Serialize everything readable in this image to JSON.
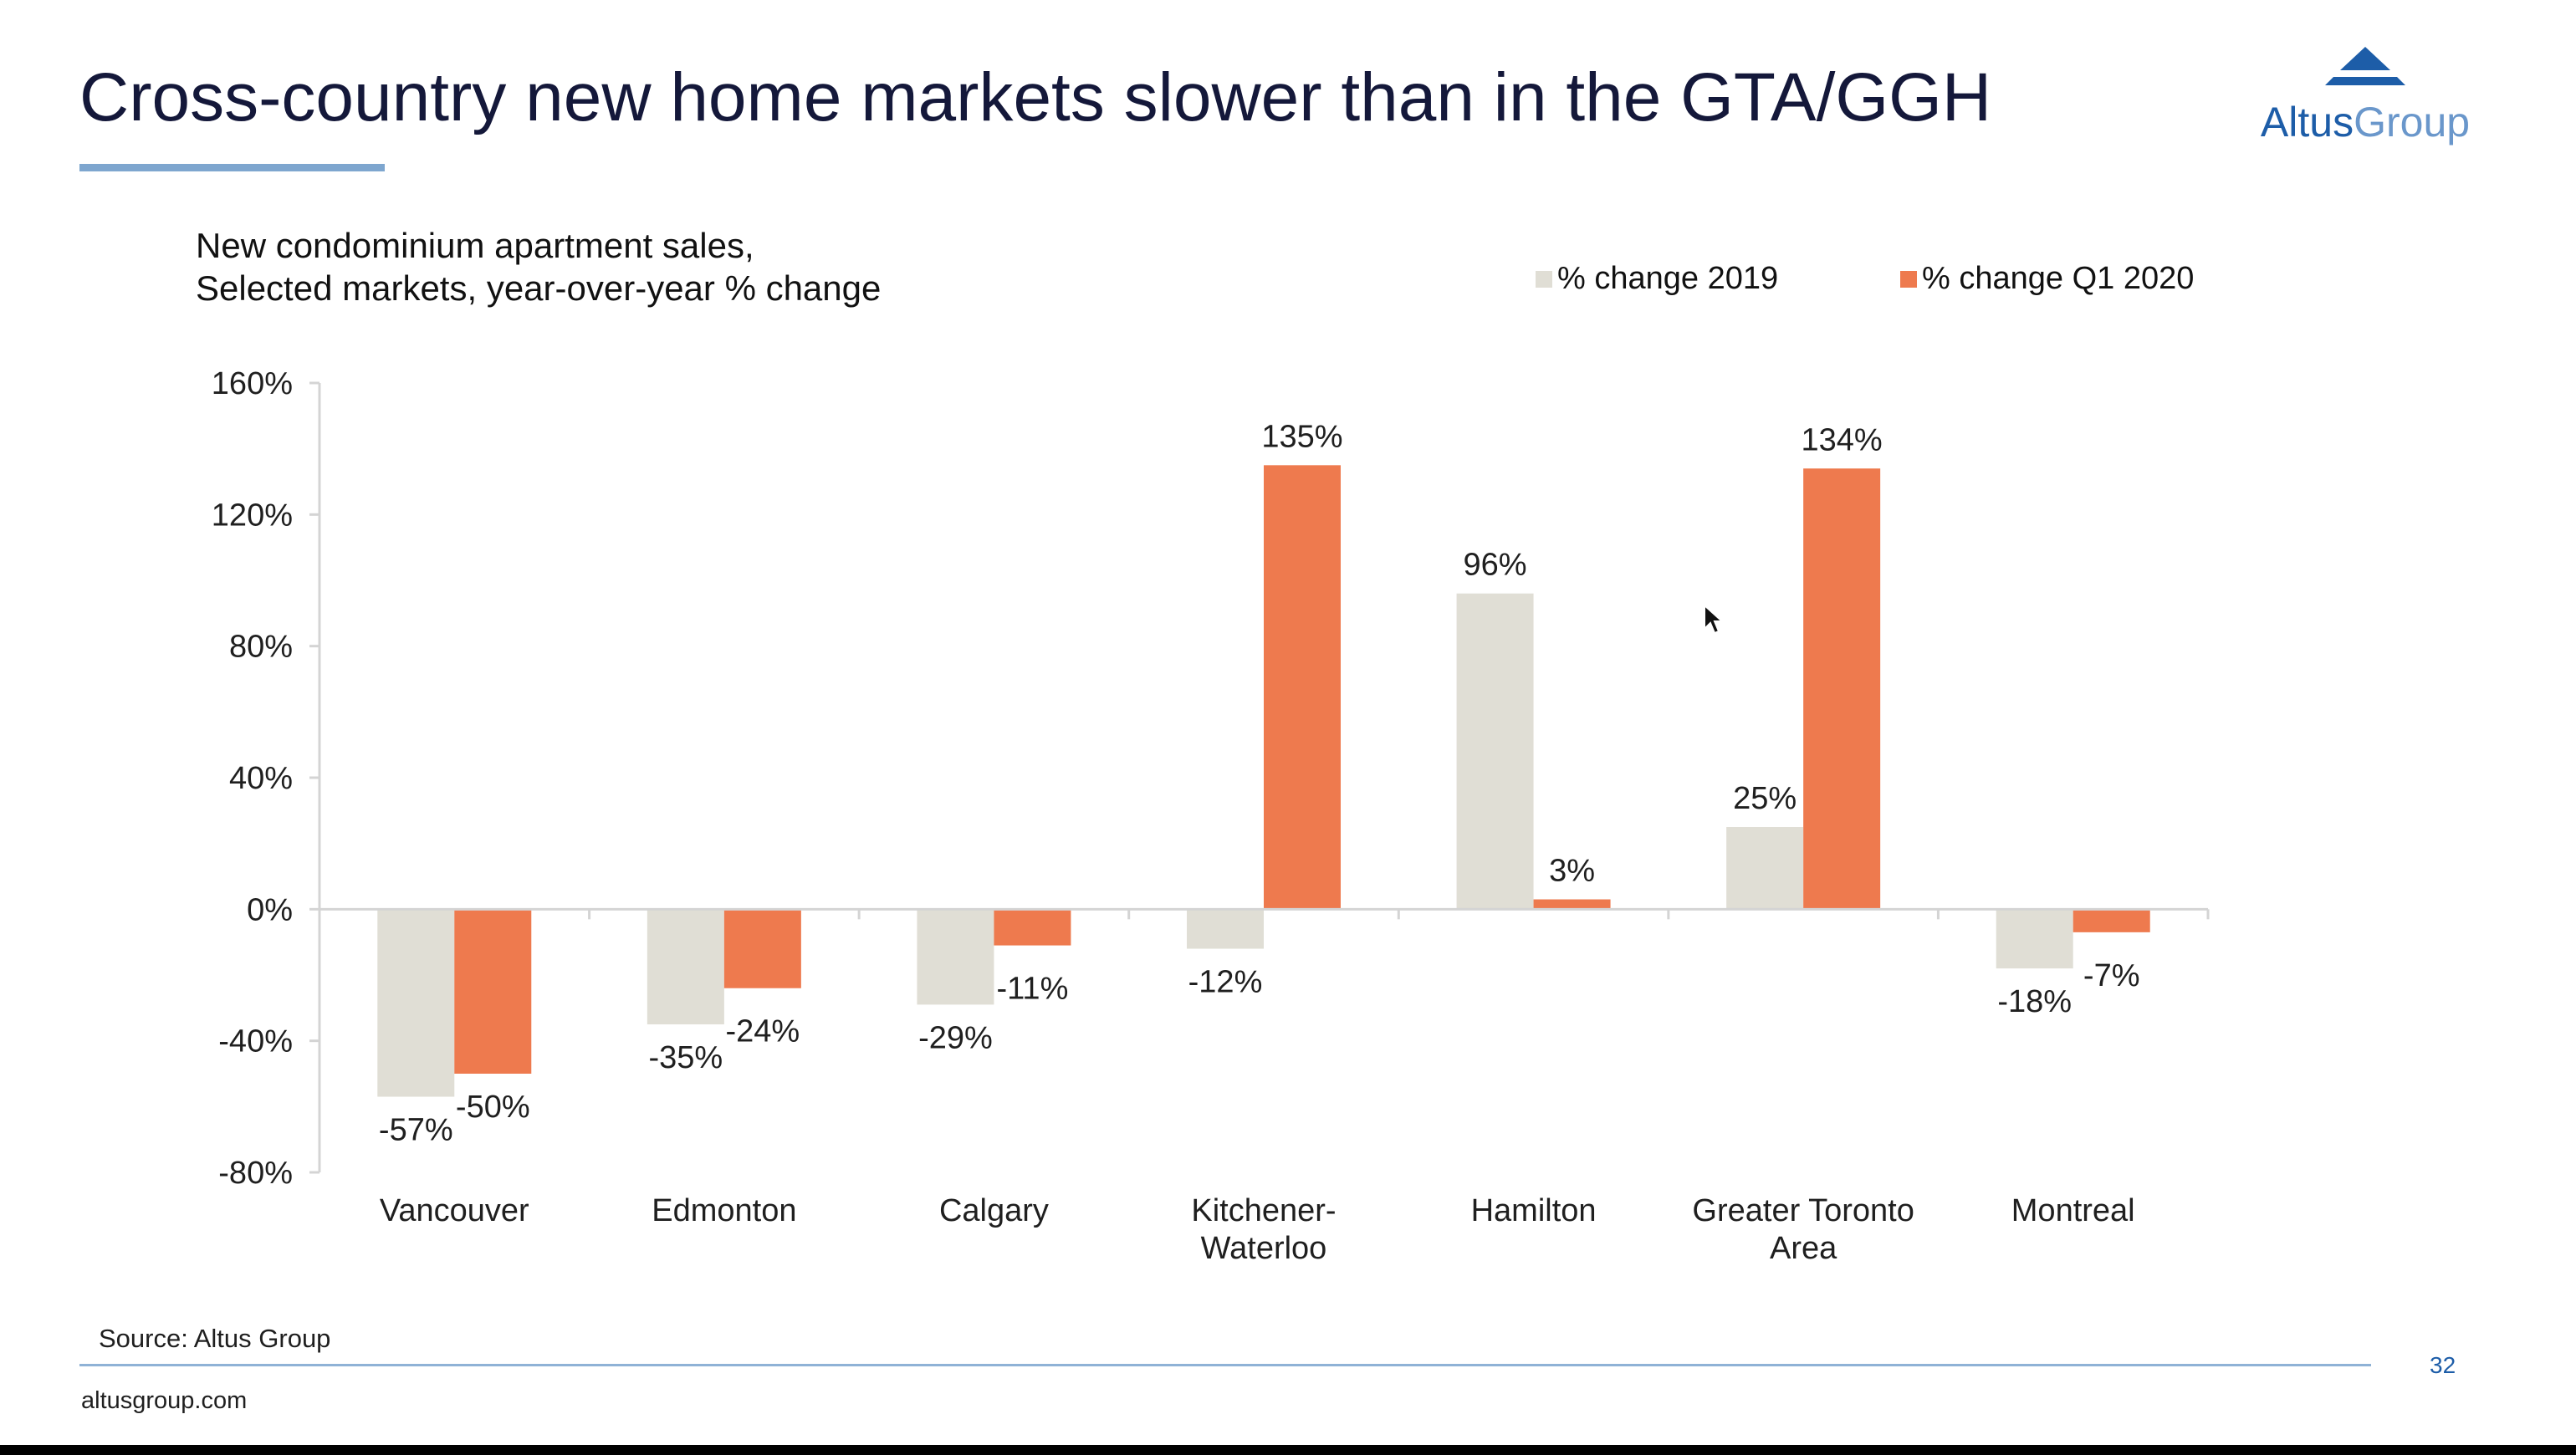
{
  "slide": {
    "title": "Cross-country new home markets slower than in the GTA/GGH",
    "logo": {
      "brand": "Altus",
      "suffix": "Group"
    },
    "source": "Source: Altus Group",
    "page_number": "32",
    "footer_url": "altusgroup.com"
  },
  "colors": {
    "series_2019": "#e0ded5",
    "series_q1_2020": "#ee7a4e",
    "title": "#14183a",
    "accent": "#7ea6cf",
    "logo_blue": "#1d5da8"
  },
  "chart_data": {
    "type": "bar",
    "title_lines": [
      "New condominium apartment sales,",
      "Selected markets, year-over-year % change"
    ],
    "categories": [
      [
        "Vancouver"
      ],
      [
        "Edmonton"
      ],
      [
        "Calgary"
      ],
      [
        "Kitchener-",
        "Waterloo"
      ],
      [
        "Hamilton"
      ],
      [
        "Greater Toronto",
        "Area"
      ],
      [
        "Montreal"
      ]
    ],
    "series": [
      {
        "name": "% change 2019",
        "values": [
          -57,
          -35,
          -29,
          -12,
          96,
          25,
          -18
        ],
        "labels": [
          "-57%",
          "-35%",
          "-29%",
          "-12%",
          "96%",
          "25%",
          "-18%"
        ]
      },
      {
        "name": "% change Q1 2020",
        "values": [
          -50,
          -24,
          -11,
          135,
          3,
          134,
          -7
        ],
        "labels": [
          "-50%",
          "-24%",
          "-11%",
          "135%",
          "3%",
          "134%",
          "-7%"
        ]
      }
    ],
    "ylim": [
      -80,
      160
    ],
    "yticks": [
      160,
      120,
      80,
      40,
      0,
      -40,
      -80
    ],
    "ytick_labels": [
      "160%",
      "120%",
      "80%",
      "40%",
      "0%",
      "-40%",
      "-80%"
    ],
    "legend_position": "top-right",
    "grid": false
  }
}
